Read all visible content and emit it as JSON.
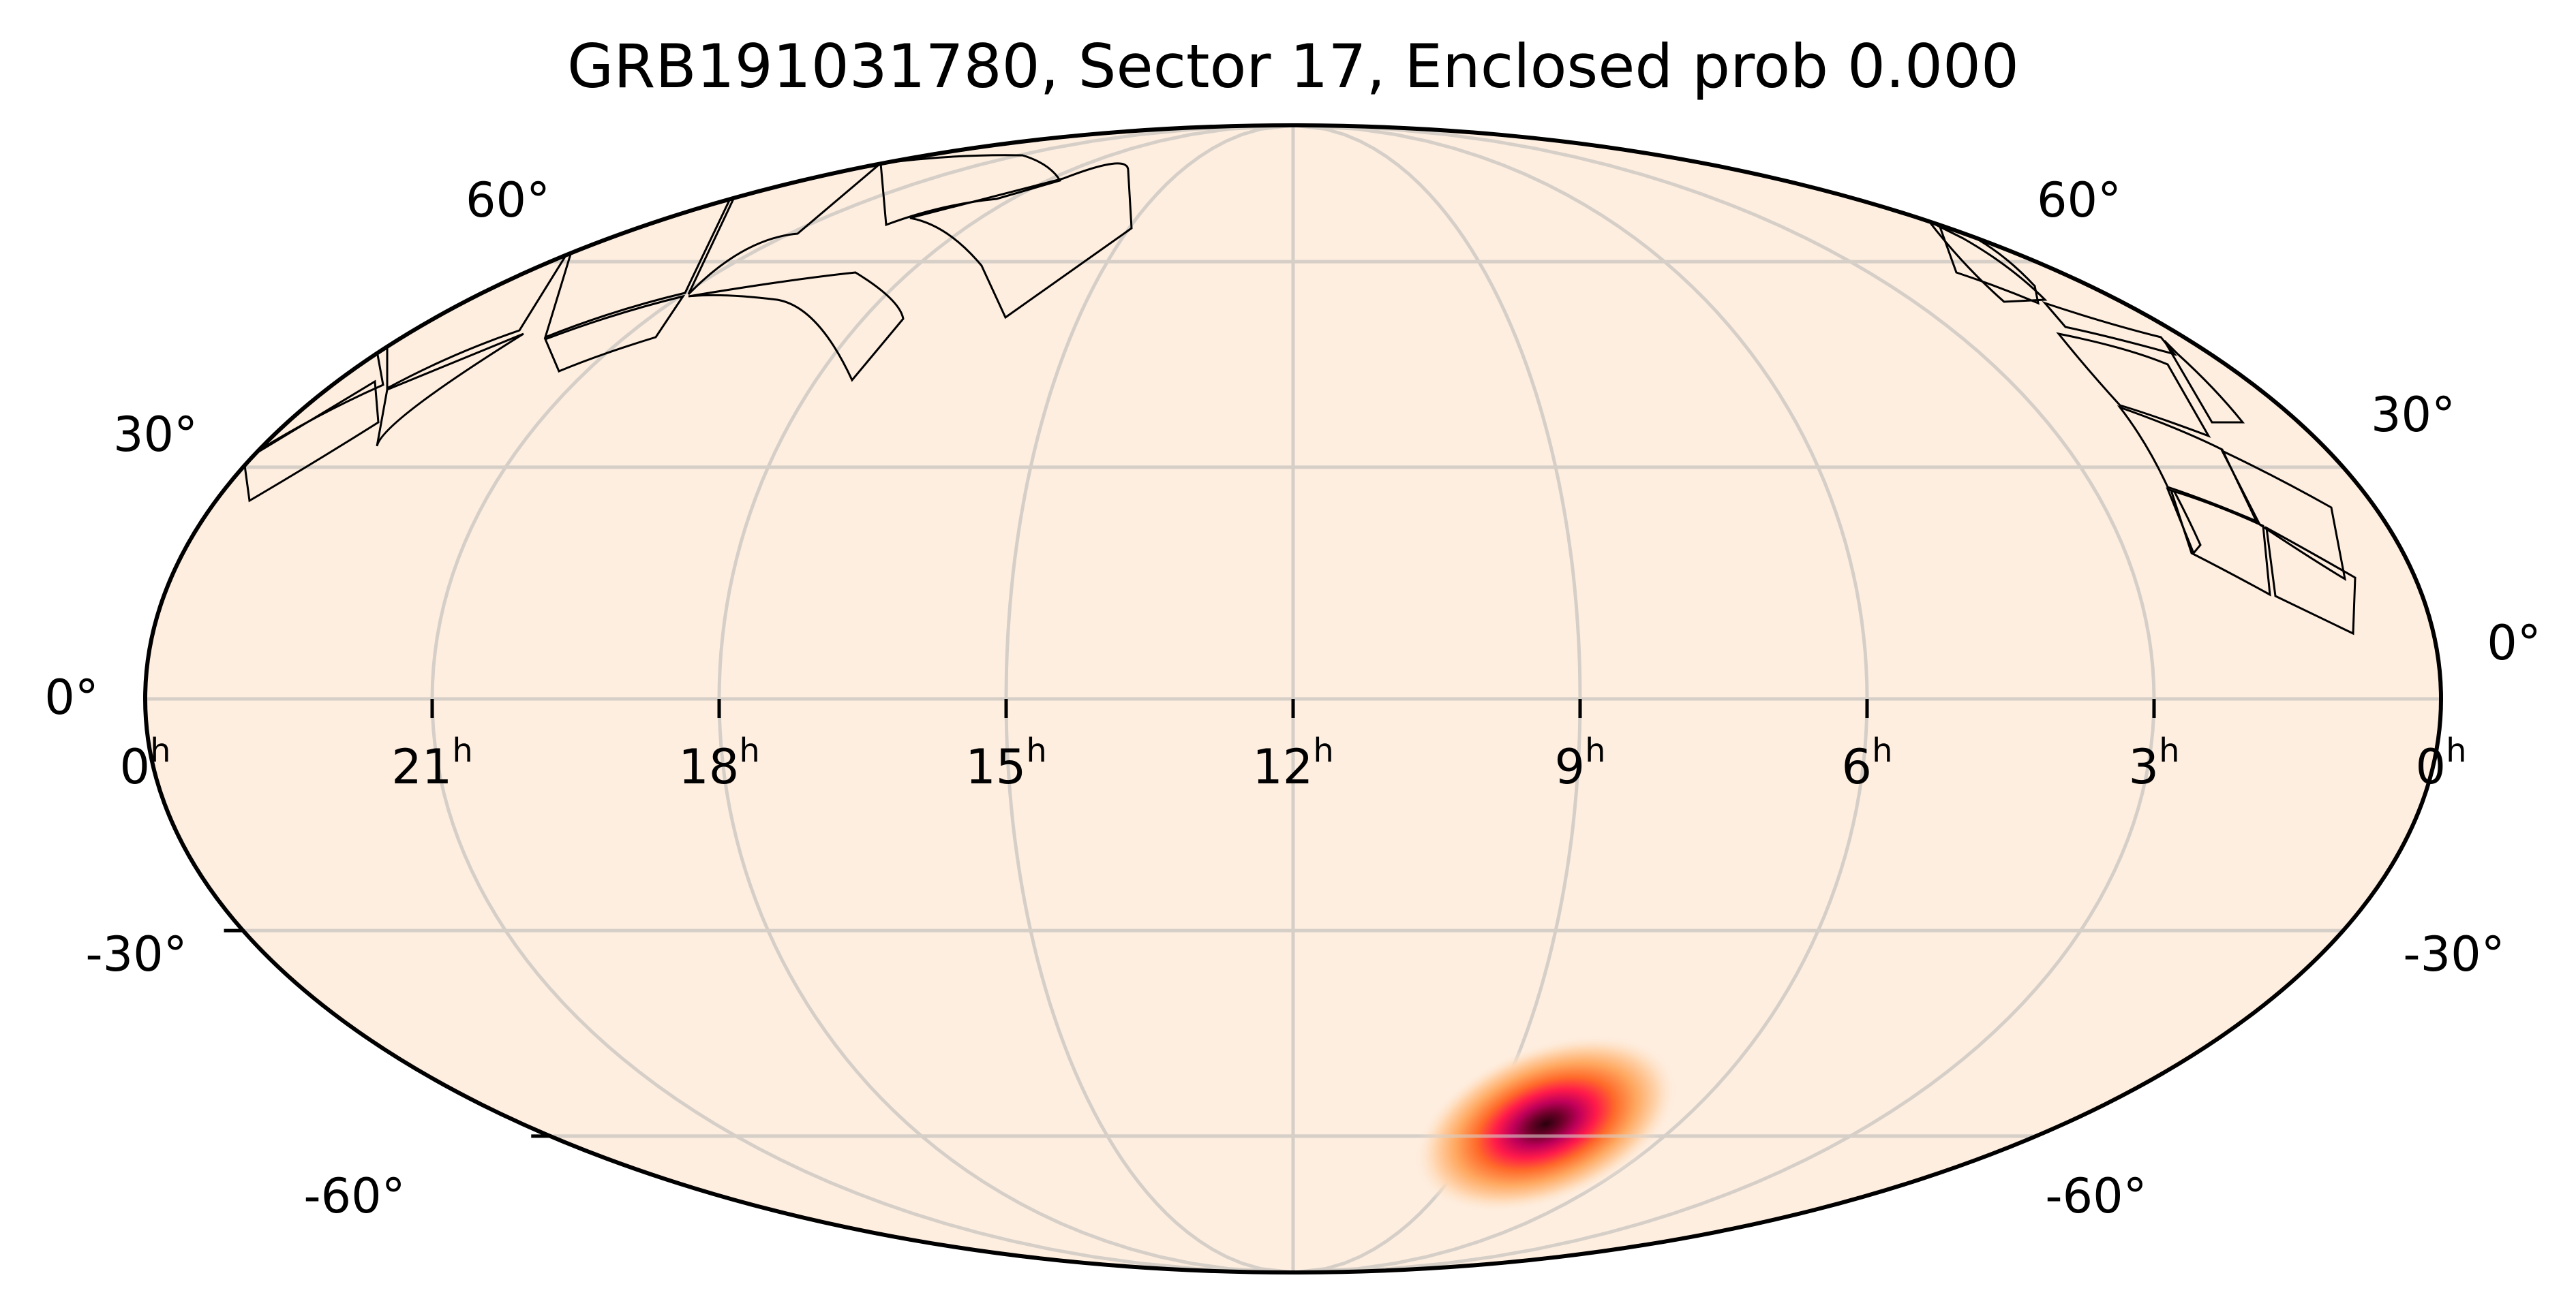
{
  "chart_data": {
    "type": "heatmap",
    "projection": "mollweide",
    "title": "GRB191031780, Sector 17, Enclosed prob 0.000",
    "xlabel": "",
    "ylabel": "",
    "grid": true,
    "ra_tick_labels": [
      {
        "hours": 0,
        "label": "0",
        "sup": "h",
        "side": "left"
      },
      {
        "hours": 21,
        "label": "21",
        "sup": "h"
      },
      {
        "hours": 18,
        "label": "18",
        "sup": "h"
      },
      {
        "hours": 15,
        "label": "15",
        "sup": "h"
      },
      {
        "hours": 12,
        "label": "12",
        "sup": "h"
      },
      {
        "hours": 9,
        "label": "9",
        "sup": "h"
      },
      {
        "hours": 6,
        "label": "6",
        "sup": "h"
      },
      {
        "hours": 3,
        "label": "3",
        "sup": "h"
      },
      {
        "hours": 0,
        "label": "0",
        "sup": "h",
        "side": "right"
      }
    ],
    "dec_tick_labels": [
      "60°",
      "30°",
      "0°",
      "-30°",
      "-60°"
    ],
    "dec_ticks_deg": [
      60,
      30,
      0,
      -30,
      -60
    ],
    "ra_grid_hours": [
      0,
      3,
      6,
      9,
      12,
      15,
      18,
      21
    ],
    "dec_grid_deg": [
      -60,
      -30,
      0,
      30,
      60
    ],
    "background_value_color": "#feeee0",
    "colormap": "RdPu-hot (light cream to dark maroon)",
    "probability_hotspot": {
      "ra_deg": 121,
      "dec_deg": -58,
      "major_axis_deg": 16,
      "minor_axis_deg": 7,
      "peak_color": "#3a0010",
      "colors": [
        "#feeee0",
        "#ffd9b0",
        "#ff9a4a",
        "#ff6a2a",
        "#ff1a4a",
        "#c0005a",
        "#3a0010"
      ]
    },
    "enclosed_probability": 0.0,
    "sector": 17,
    "event": "GRB191031780"
  },
  "figure": {
    "title": "GRB191031780, Sector 17, Enclosed prob 0.000",
    "labels": {
      "dec_60_left": "60°",
      "dec_60_right": "60°",
      "dec_30_left": "30°",
      "dec_30_right": "30°",
      "dec_0_left": "0°",
      "dec_0_right": "0°",
      "dec_m30_left": "-30°",
      "dec_m30_right": "-30°",
      "dec_m60_left": "-60°",
      "dec_m60_right": "-60°"
    },
    "colors": {
      "map_fill": "#feeee0",
      "grid": "#d6cfc8",
      "frame": "#000000",
      "footprint": "#000000"
    }
  }
}
